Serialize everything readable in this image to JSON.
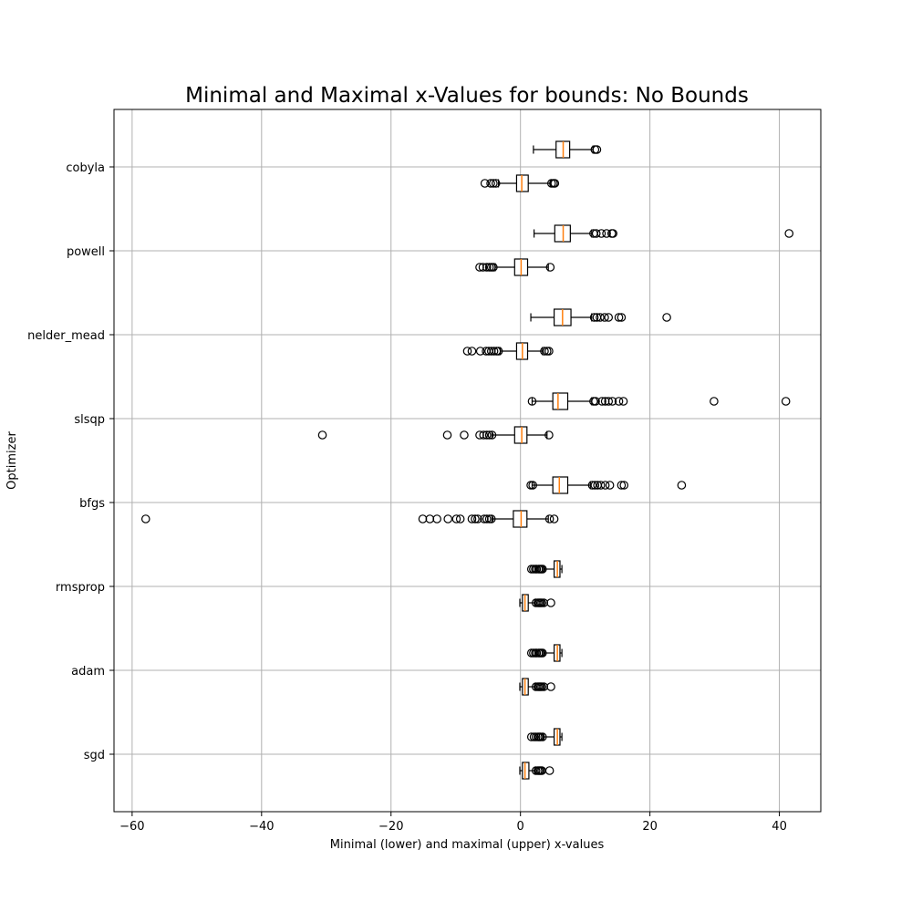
{
  "chart_data": {
    "type": "boxplot",
    "orientation": "horizontal",
    "title": "Minimal and Maximal x-Values for bounds: No Bounds",
    "xlabel": "Minimal (lower) and maximal (upper) x-values",
    "ylabel": "Optimizer",
    "xlim": [
      -62.8,
      46.4
    ],
    "xticks": [
      -60,
      -40,
      -20,
      0,
      20,
      40
    ],
    "xtick_labels": [
      "−60",
      "−40",
      "−20",
      "0",
      "20",
      "40"
    ],
    "grid": true,
    "colors": {
      "median": "#ff7f0e",
      "grid": "#b0b0b0",
      "box_edge": "#000000"
    },
    "categories": [
      "cobyla",
      "powell",
      "nelder_mead",
      "slsqp",
      "bfgs",
      "rmsprop",
      "adam",
      "sgd"
    ],
    "boxes": [
      {
        "optimizer": "cobyla",
        "position": "upper",
        "q1": 5.5,
        "median": 6.6,
        "q3": 7.6,
        "whisker_low": 2.0,
        "whisker_high": 11.2,
        "outliers": [
          11.5,
          11.8
        ]
      },
      {
        "optimizer": "cobyla",
        "position": "lower",
        "q1": -0.6,
        "median": 0.2,
        "q3": 1.2,
        "whisker_low": -3.4,
        "whisker_high": 4.6,
        "outliers": [
          -5.5,
          -4.6,
          -4.2,
          -3.8,
          4.8,
          5.1,
          5.3
        ]
      },
      {
        "optimizer": "powell",
        "position": "upper",
        "q1": 5.3,
        "median": 6.6,
        "q3": 7.7,
        "whisker_low": 2.1,
        "whisker_high": 11.0,
        "outliers": [
          11.3,
          11.7,
          12.5,
          13.3,
          14.1,
          14.3,
          41.5
        ]
      },
      {
        "optimizer": "powell",
        "position": "lower",
        "q1": -0.9,
        "median": 0.1,
        "q3": 1.1,
        "whisker_low": -3.9,
        "whisker_high": 4.3,
        "outliers": [
          -6.3,
          -5.8,
          -5.2,
          -4.8,
          -4.5,
          -4.2,
          4.6
        ]
      },
      {
        "optimizer": "nelder_mead",
        "position": "upper",
        "q1": 5.2,
        "median": 6.5,
        "q3": 7.8,
        "whisker_low": 1.6,
        "whisker_high": 11.0,
        "outliers": [
          11.4,
          11.8,
          12.3,
          13.0,
          13.6,
          15.2,
          15.6,
          22.6
        ]
      },
      {
        "optimizer": "nelder_mead",
        "position": "lower",
        "q1": -0.6,
        "median": 0.3,
        "q3": 1.1,
        "whisker_low": -3.1,
        "whisker_high": 3.4,
        "outliers": [
          -8.2,
          -7.5,
          -6.2,
          -5.3,
          -4.9,
          -4.5,
          -4.1,
          -3.7,
          -3.4,
          3.7,
          4.1,
          4.4
        ]
      },
      {
        "optimizer": "slsqp",
        "position": "upper",
        "q1": 5.0,
        "median": 5.8,
        "q3": 7.3,
        "whisker_low": 1.8,
        "whisker_high": 11.0,
        "outliers": [
          1.8,
          11.3,
          11.6,
          12.6,
          13.1,
          13.6,
          14.2,
          15.2,
          15.9,
          29.9,
          41.0
        ]
      },
      {
        "optimizer": "slsqp",
        "position": "lower",
        "q1": -0.9,
        "median": 0.2,
        "q3": 1.0,
        "whisker_low": -4.4,
        "whisker_high": 4.1,
        "outliers": [
          -30.6,
          -11.3,
          -8.7,
          -6.3,
          -5.7,
          -5.2,
          -4.8,
          -4.4,
          4.4
        ]
      },
      {
        "optimizer": "bfgs",
        "position": "upper",
        "q1": 5.0,
        "median": 6.0,
        "q3": 7.3,
        "whisker_low": 1.8,
        "whisker_high": 10.8,
        "outliers": [
          1.6,
          1.9,
          11.1,
          11.5,
          11.9,
          12.4,
          13.1,
          13.8,
          15.6,
          16.0,
          24.9
        ]
      },
      {
        "optimizer": "bfgs",
        "position": "lower",
        "q1": -1.1,
        "median": 0.1,
        "q3": 1.0,
        "whisker_low": -4.4,
        "whisker_high": 4.3,
        "outliers": [
          -57.9,
          -15.1,
          -14.0,
          -12.9,
          -11.2,
          -9.9,
          -9.3,
          -7.5,
          -7.0,
          -6.6,
          -5.6,
          -5.2,
          -4.8,
          -4.5,
          4.5,
          5.2
        ]
      },
      {
        "optimizer": "rmsprop",
        "position": "upper",
        "q1": 5.2,
        "median": 5.7,
        "q3": 6.1,
        "whisker_low": 3.6,
        "whisker_high": 6.4,
        "outliers": [
          1.7,
          2.0,
          2.3,
          2.5,
          2.8,
          3.0,
          3.2,
          3.4
        ]
      },
      {
        "optimizer": "rmsprop",
        "position": "lower",
        "q1": 0.3,
        "median": 0.7,
        "q3": 1.2,
        "whisker_low": -0.1,
        "whisker_high": 2.2,
        "outliers": [
          2.4,
          2.7,
          2.9,
          3.1,
          3.3,
          3.6,
          4.7
        ]
      },
      {
        "optimizer": "adam",
        "position": "upper",
        "q1": 5.2,
        "median": 5.7,
        "q3": 6.1,
        "whisker_low": 3.6,
        "whisker_high": 6.4,
        "outliers": [
          1.7,
          2.0,
          2.3,
          2.5,
          2.8,
          3.0,
          3.2,
          3.4
        ]
      },
      {
        "optimizer": "adam",
        "position": "lower",
        "q1": 0.3,
        "median": 0.7,
        "q3": 1.2,
        "whisker_low": -0.1,
        "whisker_high": 2.2,
        "outliers": [
          2.4,
          2.7,
          2.9,
          3.1,
          3.3,
          3.6,
          4.7
        ]
      },
      {
        "optimizer": "sgd",
        "position": "upper",
        "q1": 5.2,
        "median": 5.7,
        "q3": 6.1,
        "whisker_low": 3.6,
        "whisker_high": 6.4,
        "outliers": [
          1.7,
          2.1,
          2.4,
          2.7,
          2.9,
          3.1,
          3.4
        ]
      },
      {
        "optimizer": "sgd",
        "position": "lower",
        "q1": 0.3,
        "median": 0.7,
        "q3": 1.3,
        "whisker_low": -0.1,
        "whisker_high": 2.2,
        "outliers": [
          2.4,
          2.7,
          2.9,
          3.1,
          3.3,
          4.5
        ]
      }
    ]
  }
}
